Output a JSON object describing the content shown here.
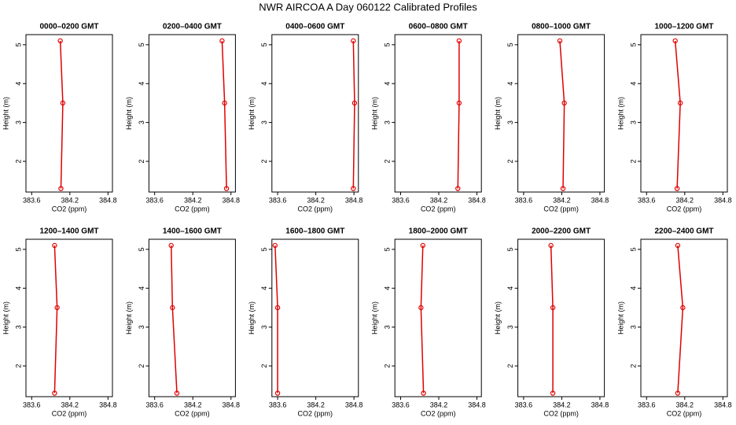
{
  "title": "NWR AIRCOA A  Day 060122  Calibrated Profiles",
  "chart_data": [
    {
      "type": "line",
      "title": "0000–0200 GMT",
      "xlabel": "CO2 (ppm)",
      "ylabel": "Height (m)",
      "color": "#e00000",
      "x": [
        384.05,
        384.09,
        384.06
      ],
      "values": [
        5.1,
        3.5,
        1.3
      ],
      "xlim": [
        383.51,
        384.87
      ],
      "xticks": [
        383.6,
        384.2,
        384.8
      ],
      "ylim": [
        1.21,
        5.26
      ],
      "yticks": [
        2,
        3,
        4,
        5
      ]
    },
    {
      "type": "line",
      "title": "0200–0400 GMT",
      "xlabel": "CO2 (ppm)",
      "ylabel": "Height (m)",
      "color": "#e00000",
      "x": [
        384.66,
        384.7,
        384.73
      ],
      "values": [
        5.1,
        3.5,
        1.3
      ],
      "xlim": [
        383.51,
        384.87
      ],
      "xticks": [
        383.6,
        384.2,
        384.8
      ],
      "ylim": [
        1.21,
        5.26
      ],
      "yticks": [
        2,
        3,
        4,
        5
      ]
    },
    {
      "type": "line",
      "title": "0400–0600 GMT",
      "xlabel": "CO2 (ppm)",
      "ylabel": "Height (m)",
      "color": "#e00000",
      "x": [
        384.79,
        384.81,
        384.79
      ],
      "values": [
        5.1,
        3.5,
        1.3
      ],
      "xlim": [
        383.51,
        384.87
      ],
      "xticks": [
        383.6,
        384.2,
        384.8
      ],
      "ylim": [
        1.21,
        5.26
      ],
      "yticks": [
        2,
        3,
        4,
        5
      ]
    },
    {
      "type": "line",
      "title": "0600–0800 GMT",
      "xlabel": "CO2 (ppm)",
      "ylabel": "Height (m)",
      "color": "#e00000",
      "x": [
        384.52,
        384.52,
        384.5
      ],
      "values": [
        5.1,
        3.5,
        1.3
      ],
      "xlim": [
        383.51,
        384.87
      ],
      "xticks": [
        383.6,
        384.2,
        384.8
      ],
      "ylim": [
        1.21,
        5.26
      ],
      "yticks": [
        2,
        3,
        4,
        5
      ]
    },
    {
      "type": "line",
      "title": "0800–1000 GMT",
      "xlabel": "CO2 (ppm)",
      "ylabel": "Height (m)",
      "color": "#e00000",
      "x": [
        384.17,
        384.24,
        384.22
      ],
      "values": [
        5.1,
        3.5,
        1.3
      ],
      "xlim": [
        383.51,
        384.87
      ],
      "xticks": [
        383.6,
        384.2,
        384.8
      ],
      "ylim": [
        1.21,
        5.26
      ],
      "yticks": [
        2,
        3,
        4,
        5
      ]
    },
    {
      "type": "line",
      "title": "1000–1200 GMT",
      "xlabel": "CO2 (ppm)",
      "ylabel": "Height (m)",
      "color": "#e00000",
      "x": [
        384.05,
        384.13,
        384.08
      ],
      "values": [
        5.1,
        3.5,
        1.3
      ],
      "xlim": [
        383.51,
        384.87
      ],
      "xticks": [
        383.6,
        384.2,
        384.8
      ],
      "ylim": [
        1.21,
        5.26
      ],
      "yticks": [
        2,
        3,
        4,
        5
      ]
    },
    {
      "type": "line",
      "title": "1200–1400 GMT",
      "xlabel": "CO2 (ppm)",
      "ylabel": "Height (m)",
      "color": "#e00000",
      "x": [
        383.96,
        384.0,
        383.96
      ],
      "values": [
        5.1,
        3.5,
        1.3
      ],
      "xlim": [
        383.51,
        384.87
      ],
      "xticks": [
        383.6,
        384.2,
        384.8
      ],
      "ylim": [
        1.21,
        5.26
      ],
      "yticks": [
        2,
        3,
        4,
        5
      ]
    },
    {
      "type": "line",
      "title": "1400–1600 GMT",
      "xlabel": "CO2 (ppm)",
      "ylabel": "Height (m)",
      "color": "#e00000",
      "x": [
        383.86,
        383.88,
        383.95
      ],
      "values": [
        5.1,
        3.5,
        1.3
      ],
      "xlim": [
        383.51,
        384.87
      ],
      "xticks": [
        383.6,
        384.2,
        384.8
      ],
      "ylim": [
        1.21,
        5.26
      ],
      "yticks": [
        2,
        3,
        4,
        5
      ]
    },
    {
      "type": "line",
      "title": "1600–1800 GMT",
      "xlabel": "CO2 (ppm)",
      "ylabel": "Height (m)",
      "color": "#e00000",
      "x": [
        383.56,
        383.6,
        383.6
      ],
      "values": [
        5.1,
        3.5,
        1.3
      ],
      "xlim": [
        383.51,
        384.87
      ],
      "xticks": [
        383.6,
        384.2,
        384.8
      ],
      "ylim": [
        1.21,
        5.26
      ],
      "yticks": [
        2,
        3,
        4,
        5
      ]
    },
    {
      "type": "line",
      "title": "1800–2000 GMT",
      "xlabel": "CO2 (ppm)",
      "ylabel": "Height (m)",
      "color": "#e00000",
      "x": [
        383.95,
        383.92,
        383.96
      ],
      "values": [
        5.1,
        3.5,
        1.3
      ],
      "xlim": [
        383.51,
        384.87
      ],
      "xticks": [
        383.6,
        384.2,
        384.8
      ],
      "ylim": [
        1.21,
        5.26
      ],
      "yticks": [
        2,
        3,
        4,
        5
      ]
    },
    {
      "type": "line",
      "title": "2000–2200 GMT",
      "xlabel": "CO2 (ppm)",
      "ylabel": "Height (m)",
      "color": "#e00000",
      "x": [
        384.03,
        384.06,
        384.06
      ],
      "values": [
        5.1,
        3.5,
        1.3
      ],
      "xlim": [
        383.51,
        384.87
      ],
      "xticks": [
        383.6,
        384.2,
        384.8
      ],
      "ylim": [
        1.21,
        5.26
      ],
      "yticks": [
        2,
        3,
        4,
        5
      ]
    },
    {
      "type": "line",
      "title": "2200–2400 GMT",
      "xlabel": "CO2 (ppm)",
      "ylabel": "Height (m)",
      "color": "#e00000",
      "x": [
        384.09,
        384.17,
        384.09
      ],
      "values": [
        5.1,
        3.5,
        1.3
      ],
      "xlim": [
        383.51,
        384.87
      ],
      "xticks": [
        383.6,
        384.2,
        384.8
      ],
      "ylim": [
        1.21,
        5.26
      ],
      "yticks": [
        2,
        3,
        4,
        5
      ]
    }
  ]
}
